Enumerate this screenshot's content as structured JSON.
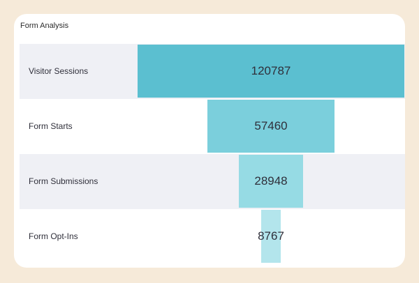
{
  "chart_data": {
    "type": "funnel",
    "title": "Form Analysis",
    "categories": [
      "Visitor Sessions",
      "Form Starts",
      "Form Submissions",
      "Form Opt-Ins"
    ],
    "values": [
      120787,
      57460,
      28948,
      8767
    ],
    "colors": [
      "#5bbfd0",
      "#7bcfdc",
      "#96dbe4",
      "#b3e5ec"
    ]
  }
}
